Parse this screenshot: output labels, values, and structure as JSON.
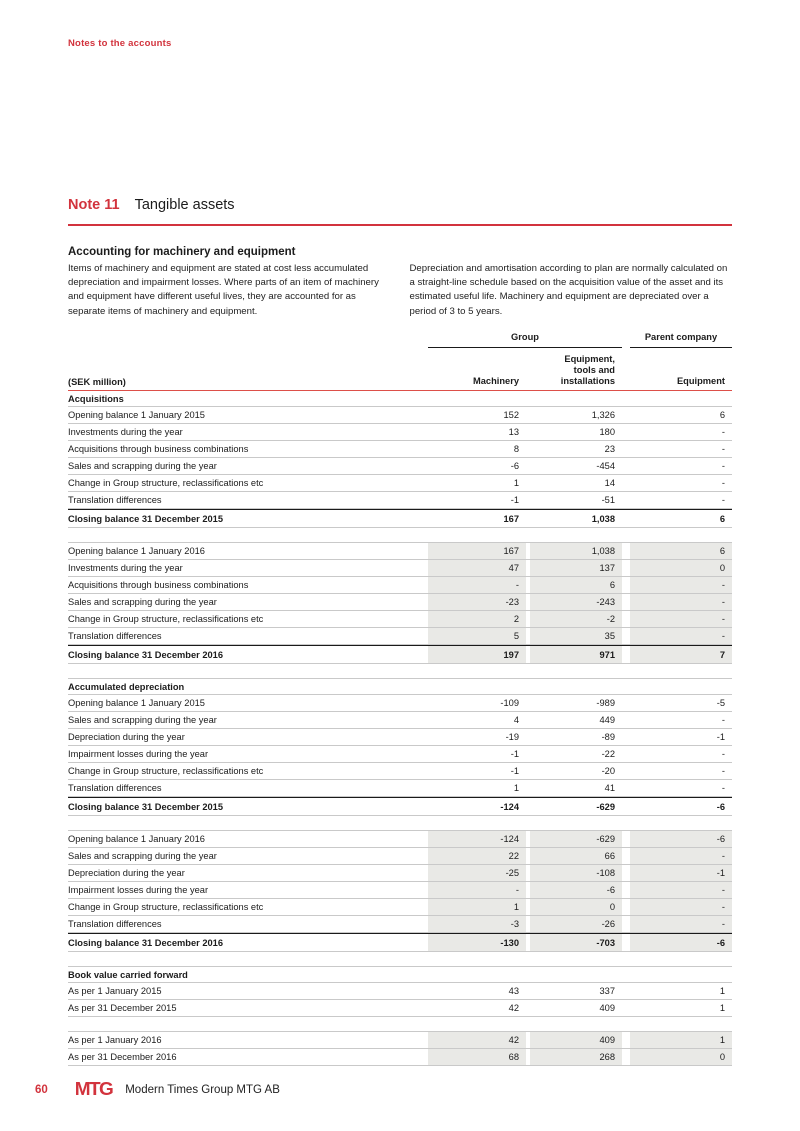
{
  "page": {
    "running_head": "Notes to the accounts",
    "note_label": "Note 11",
    "note_title": "Tangible assets"
  },
  "intro": {
    "heading": "Accounting for machinery and equipment",
    "col_left": "Items of machinery and equipment are stated at cost less accumulated depreciation and impairment losses. Where parts of an item of machinery and equipment have different useful lives, they are accounted for as separate items of machinery and equipment.",
    "col_right": "Depreciation and amortisation according to plan are normally calculated on a straight-line schedule based on the acquisition value of the asset and its estimated useful life. Machinery and equipment are depreciated over a period of 3 to 5 years."
  },
  "table": {
    "group_header": "Group",
    "parent_header": "Parent company",
    "unit_label": "(SEK million)",
    "columns": [
      "Machinery",
      "Equipment, tools and installations",
      "Equipment"
    ],
    "column_header_lines": {
      "c2a": "Equipment,",
      "c2b": "tools and",
      "c2c": "installations"
    },
    "accent_color": "#d2333d",
    "shade_color": "#e9e9e6",
    "rows": [
      {
        "type": "section",
        "label": "Acquisitions"
      },
      {
        "type": "row",
        "shaded": false,
        "label": "Opening balance 1 January 2015",
        "values": [
          "152",
          "1,326",
          "6"
        ]
      },
      {
        "type": "row",
        "shaded": false,
        "label": "Investments during the year",
        "values": [
          "13",
          "180",
          "-"
        ]
      },
      {
        "type": "row",
        "shaded": false,
        "label": "Acquisitions through business combinations",
        "values": [
          "8",
          "23",
          "-"
        ]
      },
      {
        "type": "row",
        "shaded": false,
        "label": "Sales and scrapping during the year",
        "values": [
          "-6",
          "-454",
          "-"
        ]
      },
      {
        "type": "row",
        "shaded": false,
        "label": "Change in Group structure, reclassifications etc",
        "values": [
          "1",
          "14",
          "-"
        ]
      },
      {
        "type": "row",
        "shaded": false,
        "label": "Translation differences",
        "values": [
          "-1",
          "-51",
          "-"
        ]
      },
      {
        "type": "total",
        "shaded": false,
        "label": "Closing balance 31 December 2015",
        "values": [
          "167",
          "1,038",
          "6"
        ]
      },
      {
        "type": "spacer"
      },
      {
        "type": "row",
        "shaded": true,
        "label": "Opening balance 1 January 2016",
        "values": [
          "167",
          "1,038",
          "6"
        ]
      },
      {
        "type": "row",
        "shaded": true,
        "label": "Investments during the year",
        "values": [
          "47",
          "137",
          "0"
        ]
      },
      {
        "type": "row",
        "shaded": true,
        "label": "Acquisitions through business combinations",
        "values": [
          "-",
          "6",
          "-"
        ]
      },
      {
        "type": "row",
        "shaded": true,
        "label": "Sales and scrapping during the year",
        "values": [
          "-23",
          "-243",
          "-"
        ]
      },
      {
        "type": "row",
        "shaded": true,
        "label": "Change in Group structure, reclassifications etc",
        "values": [
          "2",
          "-2",
          "-"
        ]
      },
      {
        "type": "row",
        "shaded": true,
        "label": "Translation differences",
        "values": [
          "5",
          "35",
          "-"
        ]
      },
      {
        "type": "total",
        "shaded": true,
        "label": "Closing balance 31 December 2016",
        "values": [
          "197",
          "971",
          "7"
        ]
      },
      {
        "type": "spacer"
      },
      {
        "type": "section",
        "label": "Accumulated depreciation"
      },
      {
        "type": "row",
        "shaded": false,
        "label": "Opening balance 1 January 2015",
        "values": [
          "-109",
          "-989",
          "-5"
        ]
      },
      {
        "type": "row",
        "shaded": false,
        "label": "Sales and scrapping during the year",
        "values": [
          "4",
          "449",
          "-"
        ]
      },
      {
        "type": "row",
        "shaded": false,
        "label": "Depreciation during the year",
        "values": [
          "-19",
          "-89",
          "-1"
        ]
      },
      {
        "type": "row",
        "shaded": false,
        "label": "Impairment losses during the year",
        "values": [
          "-1",
          "-22",
          "-"
        ]
      },
      {
        "type": "row",
        "shaded": false,
        "label": "Change in Group structure, reclassifications etc",
        "values": [
          "-1",
          "-20",
          "-"
        ]
      },
      {
        "type": "row",
        "shaded": false,
        "label": "Translation differences",
        "values": [
          "1",
          "41",
          "-"
        ]
      },
      {
        "type": "total",
        "shaded": false,
        "label": "Closing balance 31 December 2015",
        "values": [
          "-124",
          "-629",
          "-6"
        ]
      },
      {
        "type": "spacer"
      },
      {
        "type": "row",
        "shaded": true,
        "label": "Opening balance 1 January 2016",
        "values": [
          "-124",
          "-629",
          "-6"
        ]
      },
      {
        "type": "row",
        "shaded": true,
        "label": "Sales and scrapping during the year",
        "values": [
          "22",
          "66",
          "-"
        ]
      },
      {
        "type": "row",
        "shaded": true,
        "label": "Depreciation during the year",
        "values": [
          "-25",
          "-108",
          "-1"
        ]
      },
      {
        "type": "row",
        "shaded": true,
        "label": "Impairment losses during the year",
        "values": [
          "-",
          "-6",
          "-"
        ]
      },
      {
        "type": "row",
        "shaded": true,
        "label": "Change in Group structure, reclassifications etc",
        "values": [
          "1",
          "0",
          "-"
        ]
      },
      {
        "type": "row",
        "shaded": true,
        "label": "Translation differences",
        "values": [
          "-3",
          "-26",
          "-"
        ]
      },
      {
        "type": "total",
        "shaded": true,
        "label": "Closing balance 31 December 2016",
        "values": [
          "-130",
          "-703",
          "-6"
        ]
      },
      {
        "type": "spacer"
      },
      {
        "type": "section",
        "label": "Book value carried forward"
      },
      {
        "type": "row",
        "shaded": false,
        "label": "As per 1 January 2015",
        "values": [
          "43",
          "337",
          "1"
        ]
      },
      {
        "type": "row",
        "shaded": false,
        "label": "As per 31 December 2015",
        "values": [
          "42",
          "409",
          "1"
        ]
      },
      {
        "type": "spacer"
      },
      {
        "type": "row",
        "shaded": true,
        "label": "As per 1 January 2016",
        "values": [
          "42",
          "409",
          "1"
        ]
      },
      {
        "type": "row",
        "shaded": true,
        "label": "As per 31 December 2016",
        "values": [
          "68",
          "268",
          "0"
        ]
      }
    ]
  },
  "footer": {
    "page_number": "60",
    "logo_text": "MTG",
    "company_name": "Modern Times Group MTG AB"
  }
}
